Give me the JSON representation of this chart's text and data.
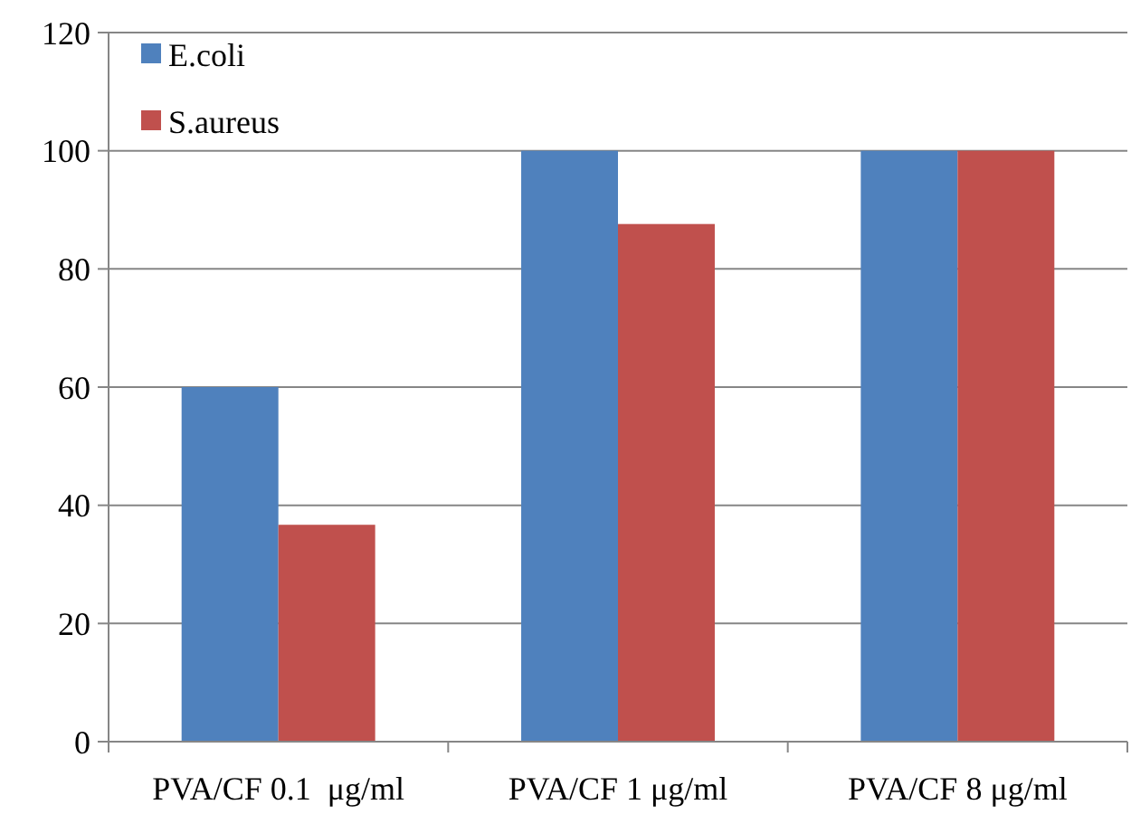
{
  "chart_data": {
    "type": "bar",
    "categories": [
      "PVA/CF 0.1  μg/ml",
      "PVA/CF 1 μg/ml",
      "PVA/CF 8 μg/ml"
    ],
    "series": [
      {
        "name": "E.coli",
        "color": "#4f81bd",
        "values": [
          60,
          100,
          100
        ]
      },
      {
        "name": "S.aureus",
        "color": "#c0504d",
        "values": [
          36.7,
          87.6,
          100
        ]
      }
    ],
    "ylim": [
      0,
      120
    ],
    "yticks": [
      0,
      20,
      40,
      60,
      80,
      100,
      120
    ],
    "grid": "y",
    "legend": "top left"
  }
}
